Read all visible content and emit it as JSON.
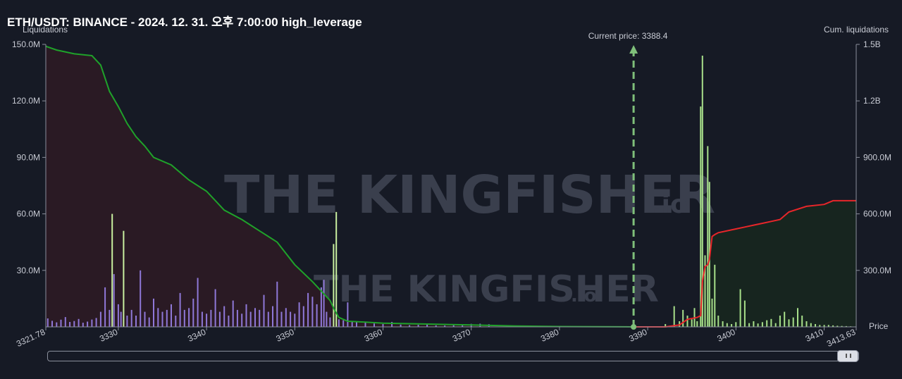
{
  "title": "ETH/USDT: BINANCE - 2024. 12. 31. 오후 7:00:00 high_leverage",
  "watermark": {
    "brand": "THE KINGFISHER",
    "suffix": ".io"
  },
  "current_price_label": "Current price: 3388.4",
  "chart_data": {
    "type": "bar",
    "title": "ETH/USDT: BINANCE - 2024. 12. 31. 오후 7:00:00 high_leverage",
    "xlabel": "Price",
    "ylabel": "Liquidations",
    "y2label": "Cum. liquidations",
    "xlim": [
      3321.78,
      3413.63
    ],
    "ylim": [
      0,
      150000000
    ],
    "y2lim": [
      0,
      1500000000
    ],
    "x_ticks": [
      3321.78,
      3330,
      3340,
      3350,
      3360,
      3370,
      3380,
      3390,
      3400,
      3410,
      3413.63
    ],
    "x_tick_labels": [
      "3321.78",
      "3330",
      "3340",
      "3350",
      "3360",
      "3370",
      "3380",
      "3390",
      "3400",
      "3410",
      "3413.63"
    ],
    "y_ticks": [
      30000000,
      60000000,
      90000000,
      120000000,
      150000000
    ],
    "y_tick_labels": [
      "30.0M",
      "60.0M",
      "90.0M",
      "120.0M",
      "150.0M"
    ],
    "y2_ticks": [
      300000000,
      600000000,
      900000000,
      1200000000,
      1500000000
    ],
    "y2_tick_labels": [
      "300.0M",
      "600.0M",
      "900.0M",
      "1.2B",
      "1.5B"
    ],
    "current_price": 3388.4,
    "grid": false,
    "colors": {
      "long_bar": "#8f78d8",
      "long_spike": "#c9f0a0",
      "short_bar": "#a8e08a",
      "cum_long": "#1fa22a",
      "cum_short": "#e8262a",
      "long_fill": "#2a1a24",
      "short_fill": "#17251f",
      "price_line": "#7fbf7a"
    },
    "series": [
      {
        "name": "Long liquidations",
        "side": "long",
        "x": [
          3322.0,
          3322.5,
          3323.0,
          3323.5,
          3324.0,
          3324.5,
          3325.0,
          3325.5,
          3326.0,
          3326.5,
          3327.0,
          3327.5,
          3328.0,
          3328.5,
          3329.0,
          3329.3,
          3329.5,
          3330.0,
          3330.3,
          3330.6,
          3331.0,
          3331.5,
          3332.0,
          3332.5,
          3333.0,
          3333.5,
          3334.0,
          3334.5,
          3335.0,
          3335.5,
          3336.0,
          3336.5,
          3337.0,
          3337.5,
          3338.0,
          3338.5,
          3339.0,
          3339.5,
          3340.0,
          3340.5,
          3341.0,
          3341.5,
          3342.0,
          3342.5,
          3343.0,
          3343.5,
          3344.0,
          3344.5,
          3345.0,
          3345.5,
          3346.0,
          3346.5,
          3347.0,
          3347.5,
          3348.0,
          3348.5,
          3349.0,
          3349.5,
          3350.0,
          3350.5,
          3351.0,
          3351.5,
          3352.0,
          3352.5,
          3353.0,
          3353.3,
          3353.6,
          3354.0,
          3354.4,
          3354.7,
          3355.0,
          3355.5,
          3356.0,
          3356.5,
          3357.0,
          3358.0,
          3359.0,
          3360.0,
          3361.0,
          3362.0,
          3363.0,
          3364.0,
          3365.0,
          3366.0,
          3367.0,
          3368.0,
          3369.0,
          3370.0,
          3371.0,
          3372.0
        ],
        "values": [
          4500000,
          3200000,
          2400000,
          3800000,
          5200000,
          2600000,
          3100000,
          4200000,
          2200000,
          2800000,
          3900000,
          4700000,
          8000000,
          21000000,
          9000000,
          60000000,
          28000000,
          12000000,
          8000000,
          51000000,
          6000000,
          9000000,
          6000000,
          30000000,
          8000000,
          5000000,
          15000000,
          10000000,
          8000000,
          9000000,
          12000000,
          6000000,
          18000000,
          9000000,
          10000000,
          15000000,
          26000000,
          8000000,
          7000000,
          9000000,
          20000000,
          8000000,
          11000000,
          6000000,
          14000000,
          9000000,
          7000000,
          12000000,
          8000000,
          10000000,
          9000000,
          17000000,
          8000000,
          11000000,
          24000000,
          8000000,
          10000000,
          8000000,
          7000000,
          13000000,
          11000000,
          18000000,
          16000000,
          12000000,
          21000000,
          25000000,
          8000000,
          5000000,
          44000000,
          61000000,
          4000000,
          3500000,
          13000000,
          3000000,
          2500000,
          2500000,
          1800000,
          1500000,
          2600000,
          1200000,
          900000,
          1100000,
          1600000,
          800000,
          700000,
          900000,
          1100000,
          1600000,
          1700000,
          1400000
        ]
      },
      {
        "name": "Short liquidations",
        "side": "short",
        "x": [
          3392.0,
          3393.0,
          3393.6,
          3394.0,
          3394.5,
          3395.0,
          3395.3,
          3395.6,
          3396.0,
          3396.2,
          3396.5,
          3396.8,
          3397.0,
          3397.3,
          3397.6,
          3398.0,
          3398.5,
          3399.0,
          3399.5,
          3400.0,
          3400.5,
          3401.0,
          3401.5,
          3402.0,
          3402.5,
          3403.0,
          3403.5,
          3404.0,
          3404.5,
          3405.0,
          3405.5,
          3406.0,
          3406.5,
          3407.0,
          3407.5,
          3408.0,
          3408.5,
          3409.0,
          3409.5,
          3410.0,
          3410.5,
          3411.0,
          3411.5,
          3412.0,
          3412.5,
          3413.0
        ],
        "values": [
          1500000,
          11000000,
          3000000,
          9000000,
          6000000,
          4000000,
          10000000,
          3000000,
          117000000,
          144000000,
          38000000,
          96000000,
          77000000,
          15000000,
          33000000,
          6000000,
          3000000,
          2000000,
          1500000,
          2500000,
          20000000,
          14000000,
          2000000,
          3000000,
          1800000,
          2500000,
          3500000,
          4200000,
          2000000,
          6000000,
          8000000,
          4000000,
          5000000,
          10000000,
          6000000,
          3000000,
          2000000,
          1500000,
          1000000,
          1000000,
          1000000,
          800000,
          600000,
          500000,
          400000,
          300000
        ]
      },
      {
        "name": "Cumulative long liquidations",
        "side": "long_cum",
        "x": [
          3321.78,
          3323.0,
          3325.0,
          3327.0,
          3328.0,
          3329.0,
          3330.0,
          3331.0,
          3332.0,
          3333.0,
          3334.0,
          3336.0,
          3338.0,
          3340.0,
          3342.0,
          3344.0,
          3346.0,
          3348.0,
          3350.0,
          3352.0,
          3354.0,
          3354.5,
          3355.0,
          3356.0,
          3358.0,
          3360.0,
          3365.0,
          3370.0,
          3375.0,
          3380.0,
          3385.0,
          3388.4
        ],
        "values": [
          1490000000,
          1470000000,
          1450000000,
          1440000000,
          1390000000,
          1250000000,
          1170000000,
          1080000000,
          1010000000,
          960000000,
          900000000,
          860000000,
          780000000,
          720000000,
          620000000,
          570000000,
          510000000,
          450000000,
          330000000,
          240000000,
          140000000,
          90000000,
          50000000,
          30000000,
          25000000,
          20000000,
          15000000,
          10000000,
          5000000,
          2000000,
          1000000,
          0
        ]
      },
      {
        "name": "Cumulative short liquidations",
        "side": "short_cum",
        "x": [
          3388.4,
          3392.0,
          3393.6,
          3394.5,
          3395.6,
          3396.0,
          3396.2,
          3396.5,
          3396.8,
          3397.0,
          3397.3,
          3397.6,
          3398.0,
          3400.0,
          3401.0,
          3402.0,
          3403.0,
          3404.0,
          3405.0,
          3406.0,
          3408.0,
          3410.0,
          3411.0,
          3413.63
        ],
        "values": [
          0,
          0,
          10000000,
          40000000,
          50000000,
          60000000,
          240000000,
          320000000,
          330000000,
          360000000,
          480000000,
          490000000,
          500000000,
          520000000,
          530000000,
          540000000,
          550000000,
          560000000,
          570000000,
          610000000,
          640000000,
          650000000,
          670000000,
          670000000
        ]
      }
    ]
  }
}
